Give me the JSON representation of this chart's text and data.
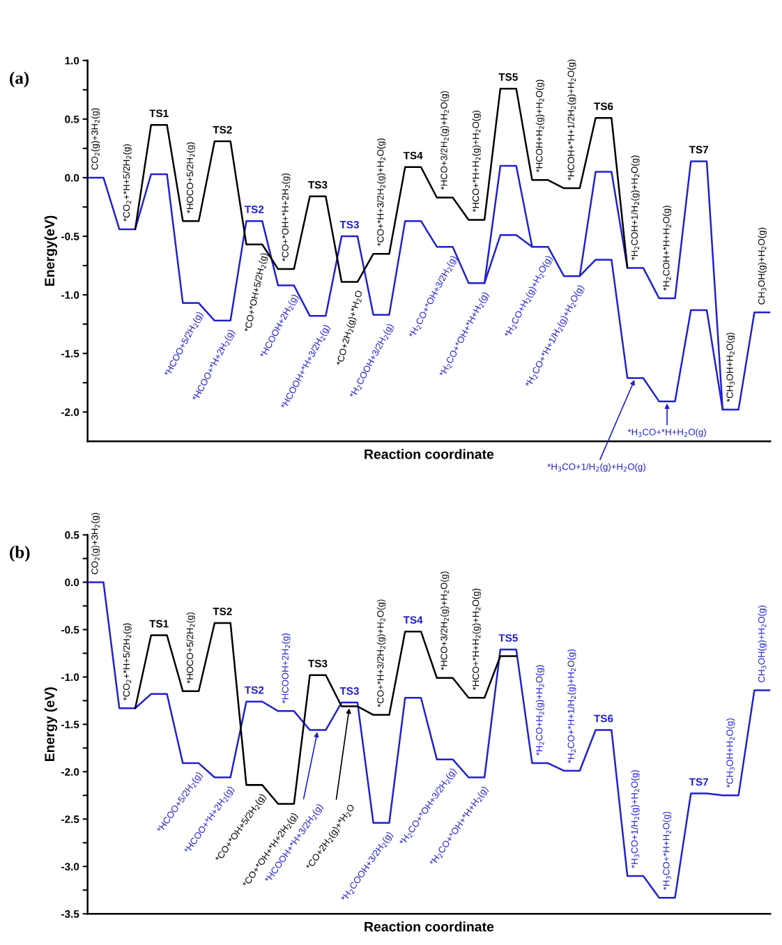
{
  "chart_data": [
    {
      "type": "line",
      "ylabel": "Energy(eV)",
      "xlabel": "Reaction coordinate",
      "tick_labels": "y",
      "categories": [
        null,
        null,
        null,
        null,
        null,
        null,
        null,
        null,
        null,
        null,
        null,
        null,
        null,
        null,
        null,
        null,
        null,
        null,
        null,
        null,
        null,
        null,
        null,
        null,
        null,
        null,
        null,
        null,
        null,
        null,
        null,
        null,
        null,
        null,
        null,
        null,
        null,
        null,
        null,
        null,
        null,
        null,
        null,
        null
      ],
      "ylim": [
        -2.25,
        1.0
      ],
      "yticks": [
        {
          "value": 1,
          "label": "1.0"
        },
        {
          "value": 0.75,
          "label": null
        },
        0.5,
        {
          "value": 0.25,
          "label": null
        },
        {
          "value": 0,
          "label": "0.0"
        },
        {
          "value": -0.25,
          "label": null
        },
        -0.5,
        {
          "value": -0.75,
          "label": null
        },
        {
          "value": -1,
          "label": "-1.0"
        },
        {
          "value": -1.25,
          "label": null
        },
        -1.5,
        {
          "value": -1.75,
          "label": null
        },
        {
          "value": -2,
          "label": "-2.0"
        }
      ],
      "series": [
        {
          "color": "#000000",
          "values": [
            null,
            null,
            null,
            -0.44,
            0.45,
            0.45,
            -0.37,
            -0.37,
            0.31,
            0.31,
            -0.57,
            -0.57,
            -0.78,
            -0.78,
            -0.16,
            -0.16,
            -0.89,
            -0.89,
            -0.65,
            -0.65,
            0.09,
            0.09,
            -0.17,
            -0.17,
            -0.36,
            -0.36,
            0.76,
            0.76,
            -0.02,
            -0.02,
            -0.09,
            -0.09,
            0.51,
            0.51,
            -0.77,
            null,
            null,
            null,
            null,
            null,
            null,
            null,
            null,
            null
          ]
        },
        {
          "color": "#2020d0",
          "values": [
            0,
            0,
            -0.44,
            -0.44,
            0.03,
            0.03,
            -1.07,
            -1.07,
            -1.22,
            -1.22,
            -0.37,
            -0.37,
            -0.92,
            -0.92,
            -1.18,
            -1.18,
            -0.5,
            -0.5,
            -1.17,
            -1.17,
            -0.37,
            -0.37,
            -0.59,
            -0.59,
            -0.9,
            -0.9,
            -0.49,
            -0.49,
            -0.59,
            -0.59,
            -0.84,
            -0.84,
            -0.7,
            -0.7,
            -1.71,
            -1.71,
            -1.91,
            -1.91,
            -1.13,
            -1.13,
            -1.98,
            -1.98,
            -1.15,
            -1.15
          ]
        },
        {
          "color": "#2020d0",
          "values": [
            null,
            null,
            null,
            null,
            null,
            null,
            null,
            null,
            null,
            null,
            null,
            null,
            null,
            null,
            null,
            null,
            null,
            null,
            null,
            null,
            null,
            null,
            null,
            null,
            null,
            -0.9,
            0.1,
            0.1,
            -0.59,
            null,
            null,
            -0.84,
            0.05,
            0.05,
            -0.77,
            -0.77,
            -1.03,
            -1.03,
            0.14,
            0.14,
            -1.98,
            null,
            null,
            null
          ]
        }
      ],
      "annotations": [
        "(a)",
        "CO$_{2}$(g)+3H$_{2}$(g)",
        "*CO$_{2}$+*H+5/2H$_{2}$(g)",
        "TS1",
        "*HOCO+5/2H$_{2}$(g)",
        "TS2",
        "*CO+*OH+5/2H$_{2}$(g)",
        "*CO+*OH+*H+2H$_{2}$(g)",
        "TS3",
        "*CO+2H$_{2}$(g)+*H$_{2}$O",
        "*CO+*H+3/2H$_{2}$(g)+H$_{2}$O(g)",
        "TS4",
        "*HCO+3/2H$_{2}$(g)+H$_{2}$O(g)",
        "*HCO+*H+H$_{2}$(g)+H$_{2}$O(g)",
        "TS5",
        "*HCOH+H$_{2}$(g)+H$_{2}$O(g)",
        "*HCOH+*H+1/2H$_{2}$(g)+H$_{2}$O(g)",
        "TS6",
        "*H$_{2}$COH+1/H$_{2}$(g)+H$_{2}$O(g)",
        "*H$_{2}$COH+*H+H$_{2}$O(g)",
        "TS7",
        "*CH$_{3}$OH+H$_{2}$O(g)",
        "CH$_{3}$OH(g)+H$_{2}$O(g)",
        "TS2",
        "TS3",
        "*HCOO+5/2H$_{2}$(g)",
        "*HCOO+*H+2H$_{2}$(g)",
        "*HCOOH+2H$_{2}$(g)",
        "*HCOOH+*H+3/2H$_{2}$(g)",
        "*H$_{2}$COOH+3/2H$_{2}$(g)",
        "*H$_{2}$CO+*OH+3/2H$_{2}$(g)",
        "*H$_{2}$CO+*OH+*H+H$_{2}$(g)",
        "*H$_{2}$CO+H$_{2}$(g)+H$_{2}$O(g)",
        "*H$_{2}$CO+*H+1/H$_{2}$(g)+H$_{2}$O(g)",
        "*H$_{3}$CO+*H+H$_{2}$O(g)",
        "*H$_{3}$CO+1/H$_{2}$(g)+H$_{2}$O(g)"
      ]
    },
    {
      "type": "line",
      "ylabel": "Energy (eV)",
      "xlabel": "Reaction coordinate",
      "tick_labels": "y",
      "categories": [
        null,
        null,
        null,
        null,
        null,
        null,
        null,
        null,
        null,
        null,
        null,
        null,
        null,
        null,
        null,
        null,
        null,
        null,
        null,
        null,
        null,
        null,
        null,
        null,
        null,
        null,
        null,
        null,
        null,
        null,
        null,
        null,
        null,
        null,
        null,
        null,
        null,
        null,
        null,
        null,
        null,
        null,
        null,
        null
      ],
      "ylim": [
        -3.5,
        0.5
      ],
      "yticks": [
        0.5,
        {
          "value": 0.25,
          "label": null
        },
        {
          "value": 0,
          "label": "0.0"
        },
        {
          "value": -0.25,
          "label": null
        },
        -0.5,
        {
          "value": -0.75,
          "label": null
        },
        {
          "value": -1,
          "label": "-1.0"
        },
        {
          "value": -1.25,
          "label": null
        },
        -1.5,
        {
          "value": -1.75,
          "label": null
        },
        {
          "value": -2,
          "label": "-2.0"
        },
        {
          "value": -2.25,
          "label": null
        },
        -2.5,
        {
          "value": -2.75,
          "label": null
        },
        {
          "value": -3,
          "label": "-3.0"
        },
        {
          "value": -3.25,
          "label": null
        },
        -3.5
      ],
      "series": [
        {
          "color": "#000000",
          "values": [
            null,
            null,
            null,
            -1.33,
            -0.56,
            -0.56,
            -1.15,
            -1.15,
            -0.43,
            -0.43,
            -2.14,
            -2.14,
            -2.34,
            -2.34,
            -0.98,
            -0.98,
            -1.31,
            -1.31,
            -1.4,
            -1.4,
            -0.52,
            -0.52,
            -1.01,
            -1.01,
            -1.22,
            -1.22,
            -0.78,
            -0.78,
            null,
            null,
            null,
            null,
            null,
            null,
            null,
            null,
            null,
            null,
            null,
            null,
            null,
            null,
            null,
            null
          ]
        },
        {
          "color": "#2020d0",
          "values": [
            0,
            0,
            -1.33,
            -1.33,
            -1.18,
            -1.18,
            -1.91,
            -1.91,
            -2.06,
            -2.06,
            -1.26,
            -1.26,
            -1.36,
            -1.36,
            -1.56,
            -1.56,
            -1.27,
            -1.27,
            -2.54,
            -2.54,
            -1.22,
            -1.22,
            -1.87,
            -1.87,
            -2.06,
            -2.06,
            -0.71,
            -0.71,
            -1.91,
            -1.91,
            -1.99,
            -1.99,
            -1.56,
            -1.56,
            -3.1,
            -3.1,
            -3.33,
            -3.33,
            -2.23,
            -2.23,
            -2.25,
            -2.25,
            -1.14,
            -1.14
          ]
        }
      ],
      "annotations": [
        "(b)",
        "CO$_{2}$(g)+3H$_{2}$(g)",
        "*CO$_{2}$+*H+5/2H$_{2}$(g)",
        "TS1",
        "*HOCO+5/2H$_{2}$(g)",
        "TS2",
        "*CO+*OH+5/2H$_{2}$(g)",
        "*CO+*OH+*H+2H$_{2}$(g)",
        "TS3",
        "*CO+2H$_{2}$(g)+*H$_{2}$O",
        "*CO+*H+3/2H$_{2}$(g)+H$_{2}$O(g)",
        "*HCO+3/2H$_{2}$(g)+H$_{2}$O(g)",
        "*HCO+*H+H$_{2}$(g)+H$_{2}$O(g)",
        "TS2",
        "TS3",
        "TS4",
        "TS5",
        "TS6",
        "TS7",
        "*HCOOH+2H$_{2}$(g)",
        "*H$_{2}$CO+H$_{2}$(g)+H$_{2}$O(g)",
        "*H$_{2}$CO+*H+1/H$_{2}$(g)+H$_{2}$O(g)",
        "*H$_{3}$CO+1/H$_{2}$(g)+H$_{2}$O(g)",
        "*H$_{3}$CO+*H+H$_{2}$O(g)",
        "*CH$_{3}$OH+H$_{2}$O(g)",
        "CH$_{3}$OH(g)+H$_{2}$O(g)",
        "*HCOO+5/2H$_{2}$(g)",
        "*HCOO+*H+2H$_{2}$(g)",
        "*HCOOH+*H+3/2H$_{2}$(g)",
        "*H$_{2}$COOH+3/2H$_{2}$(g)",
        "*H$_{2}$CO+*OH+3/2H$_{2}$(g)",
        "*H$_{2}$CO+*OH+*H+H$_{2}$(g)"
      ]
    }
  ]
}
